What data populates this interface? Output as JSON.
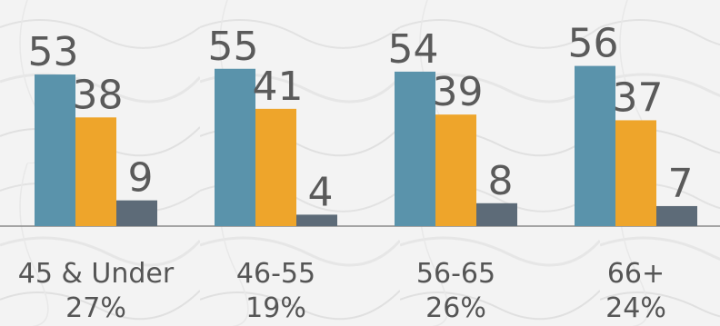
{
  "chart_data": {
    "type": "bar",
    "categories": [
      "45 & Under",
      "46-55",
      "56-65",
      "66+"
    ],
    "category_shares": [
      "27%",
      "19%",
      "26%",
      "24%"
    ],
    "series": [
      {
        "values": [
          53,
          55,
          54,
          56
        ],
        "color": "#5a93ab"
      },
      {
        "values": [
          38,
          41,
          39,
          37
        ],
        "color": "#eea52b"
      },
      {
        "values": [
          9,
          4,
          8,
          7
        ],
        "color": "#5d6b78"
      }
    ],
    "ylim": [
      0,
      60
    ],
    "grid": false,
    "legend": "none"
  },
  "colors": {
    "background": "#f3f3f3",
    "label": "#5a5a5a",
    "baseline": "#8a8a8a"
  }
}
